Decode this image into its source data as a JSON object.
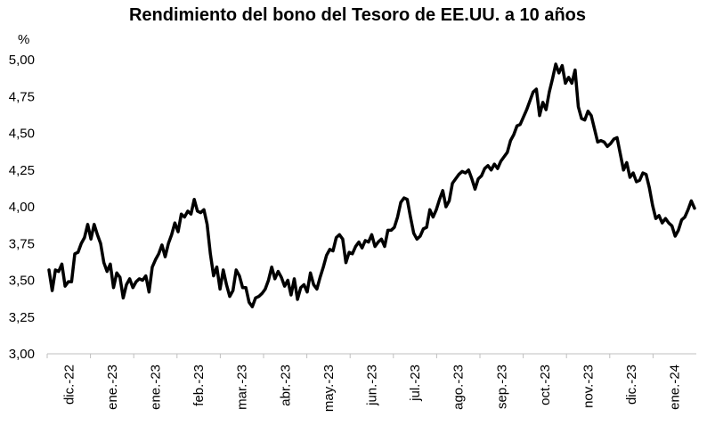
{
  "chart_data": {
    "type": "line",
    "title": "Rendimiento del bono del Tesoro de EE.UU. a 10 años",
    "ylabel": "%",
    "xlabel": "",
    "ylim": [
      3.0,
      5.0
    ],
    "yticks": [
      "3,00",
      "3,25",
      "3,50",
      "3,75",
      "4,00",
      "4,25",
      "4,50",
      "4,75",
      "5,00"
    ],
    "xticks": [
      "dic.-22",
      "ene.-23",
      "ene.-23",
      "feb.-23",
      "mar.-23",
      "abr.-23",
      "may.-23",
      "jun.-23",
      "jul.-23",
      "ago.-23",
      "sep.-23",
      "oct.-23",
      "nov.-23",
      "dic.-23",
      "ene.-24"
    ],
    "grid": false,
    "line_color": "#000000",
    "series": [
      {
        "values": [
          3.57,
          3.43,
          3.57,
          3.56,
          3.61,
          3.46,
          3.49,
          3.49,
          3.68,
          3.69,
          3.75,
          3.79,
          3.88,
          3.78,
          3.88,
          3.81,
          3.75,
          3.62,
          3.56,
          3.61,
          3.45,
          3.55,
          3.52,
          3.38,
          3.47,
          3.51,
          3.45,
          3.49,
          3.51,
          3.5,
          3.53,
          3.42,
          3.59,
          3.64,
          3.68,
          3.74,
          3.66,
          3.75,
          3.81,
          3.89,
          3.83,
          3.95,
          3.93,
          3.97,
          3.95,
          4.05,
          3.97,
          3.96,
          3.98,
          3.88,
          3.68,
          3.53,
          3.59,
          3.44,
          3.57,
          3.47,
          3.39,
          3.43,
          3.57,
          3.53,
          3.45,
          3.45,
          3.35,
          3.32,
          3.38,
          3.39,
          3.41,
          3.44,
          3.5,
          3.59,
          3.51,
          3.56,
          3.52,
          3.46,
          3.5,
          3.4,
          3.51,
          3.37,
          3.45,
          3.47,
          3.42,
          3.55,
          3.47,
          3.44,
          3.52,
          3.59,
          3.67,
          3.71,
          3.7,
          3.79,
          3.81,
          3.78,
          3.62,
          3.69,
          3.68,
          3.73,
          3.76,
          3.72,
          3.77,
          3.76,
          3.81,
          3.73,
          3.76,
          3.78,
          3.73,
          3.84,
          3.84,
          3.86,
          3.93,
          4.03,
          4.06,
          4.05,
          3.93,
          3.82,
          3.78,
          3.8,
          3.85,
          3.86,
          3.98,
          3.93,
          3.98,
          4.05,
          4.11,
          4.0,
          4.04,
          4.16,
          4.19,
          4.22,
          4.24,
          4.23,
          4.25,
          4.19,
          4.12,
          4.19,
          4.21,
          4.26,
          4.28,
          4.25,
          4.29,
          4.26,
          4.31,
          4.34,
          4.37,
          4.45,
          4.49,
          4.55,
          4.56,
          4.61,
          4.66,
          4.72,
          4.78,
          4.8,
          4.62,
          4.71,
          4.66,
          4.78,
          4.87,
          4.97,
          4.91,
          4.96,
          4.84,
          4.88,
          4.84,
          4.93,
          4.68,
          4.6,
          4.59,
          4.65,
          4.62,
          4.53,
          4.44,
          4.45,
          4.44,
          4.41,
          4.43,
          4.46,
          4.47,
          4.36,
          4.25,
          4.3,
          4.2,
          4.23,
          4.17,
          4.18,
          4.23,
          4.22,
          4.13,
          4.01,
          3.92,
          3.94,
          3.89,
          3.92,
          3.89,
          3.87,
          3.8,
          3.84,
          3.91,
          3.93,
          3.98,
          4.04,
          3.99
        ]
      }
    ]
  }
}
